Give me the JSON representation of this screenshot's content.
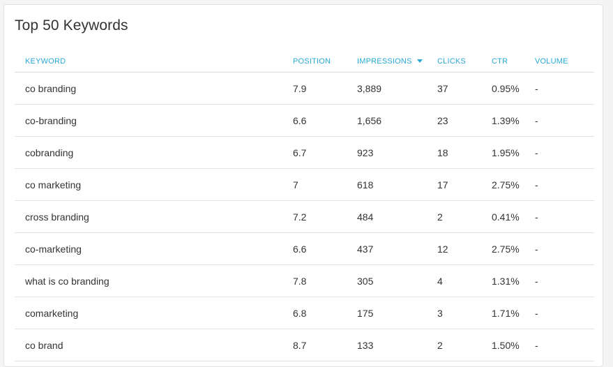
{
  "panel": {
    "title": "Top 50 Keywords"
  },
  "table": {
    "columns": {
      "keyword": "KEYWORD",
      "position": "POSITION",
      "impressions": "IMPRESSIONS",
      "clicks": "CLICKS",
      "ctr": "CTR",
      "volume": "VOLUME"
    },
    "sorted_by": "impressions",
    "sort_direction": "desc",
    "accent_color": "#29a8d6",
    "rows": [
      {
        "keyword": "co branding",
        "position": "7.9",
        "impressions": "3,889",
        "clicks": "37",
        "ctr": "0.95%",
        "volume": "-"
      },
      {
        "keyword": "co-branding",
        "position": "6.6",
        "impressions": "1,656",
        "clicks": "23",
        "ctr": "1.39%",
        "volume": "-"
      },
      {
        "keyword": "cobranding",
        "position": "6.7",
        "impressions": "923",
        "clicks": "18",
        "ctr": "1.95%",
        "volume": "-"
      },
      {
        "keyword": "co marketing",
        "position": "7",
        "impressions": "618",
        "clicks": "17",
        "ctr": "2.75%",
        "volume": "-"
      },
      {
        "keyword": "cross branding",
        "position": "7.2",
        "impressions": "484",
        "clicks": "2",
        "ctr": "0.41%",
        "volume": "-"
      },
      {
        "keyword": "co-marketing",
        "position": "6.6",
        "impressions": "437",
        "clicks": "12",
        "ctr": "2.75%",
        "volume": "-"
      },
      {
        "keyword": "what is co branding",
        "position": "7.8",
        "impressions": "305",
        "clicks": "4",
        "ctr": "1.31%",
        "volume": "-"
      },
      {
        "keyword": "comarketing",
        "position": "6.8",
        "impressions": "175",
        "clicks": "3",
        "ctr": "1.71%",
        "volume": "-"
      },
      {
        "keyword": "co brand",
        "position": "8.7",
        "impressions": "133",
        "clicks": "2",
        "ctr": "1.50%",
        "volume": "-"
      }
    ]
  }
}
